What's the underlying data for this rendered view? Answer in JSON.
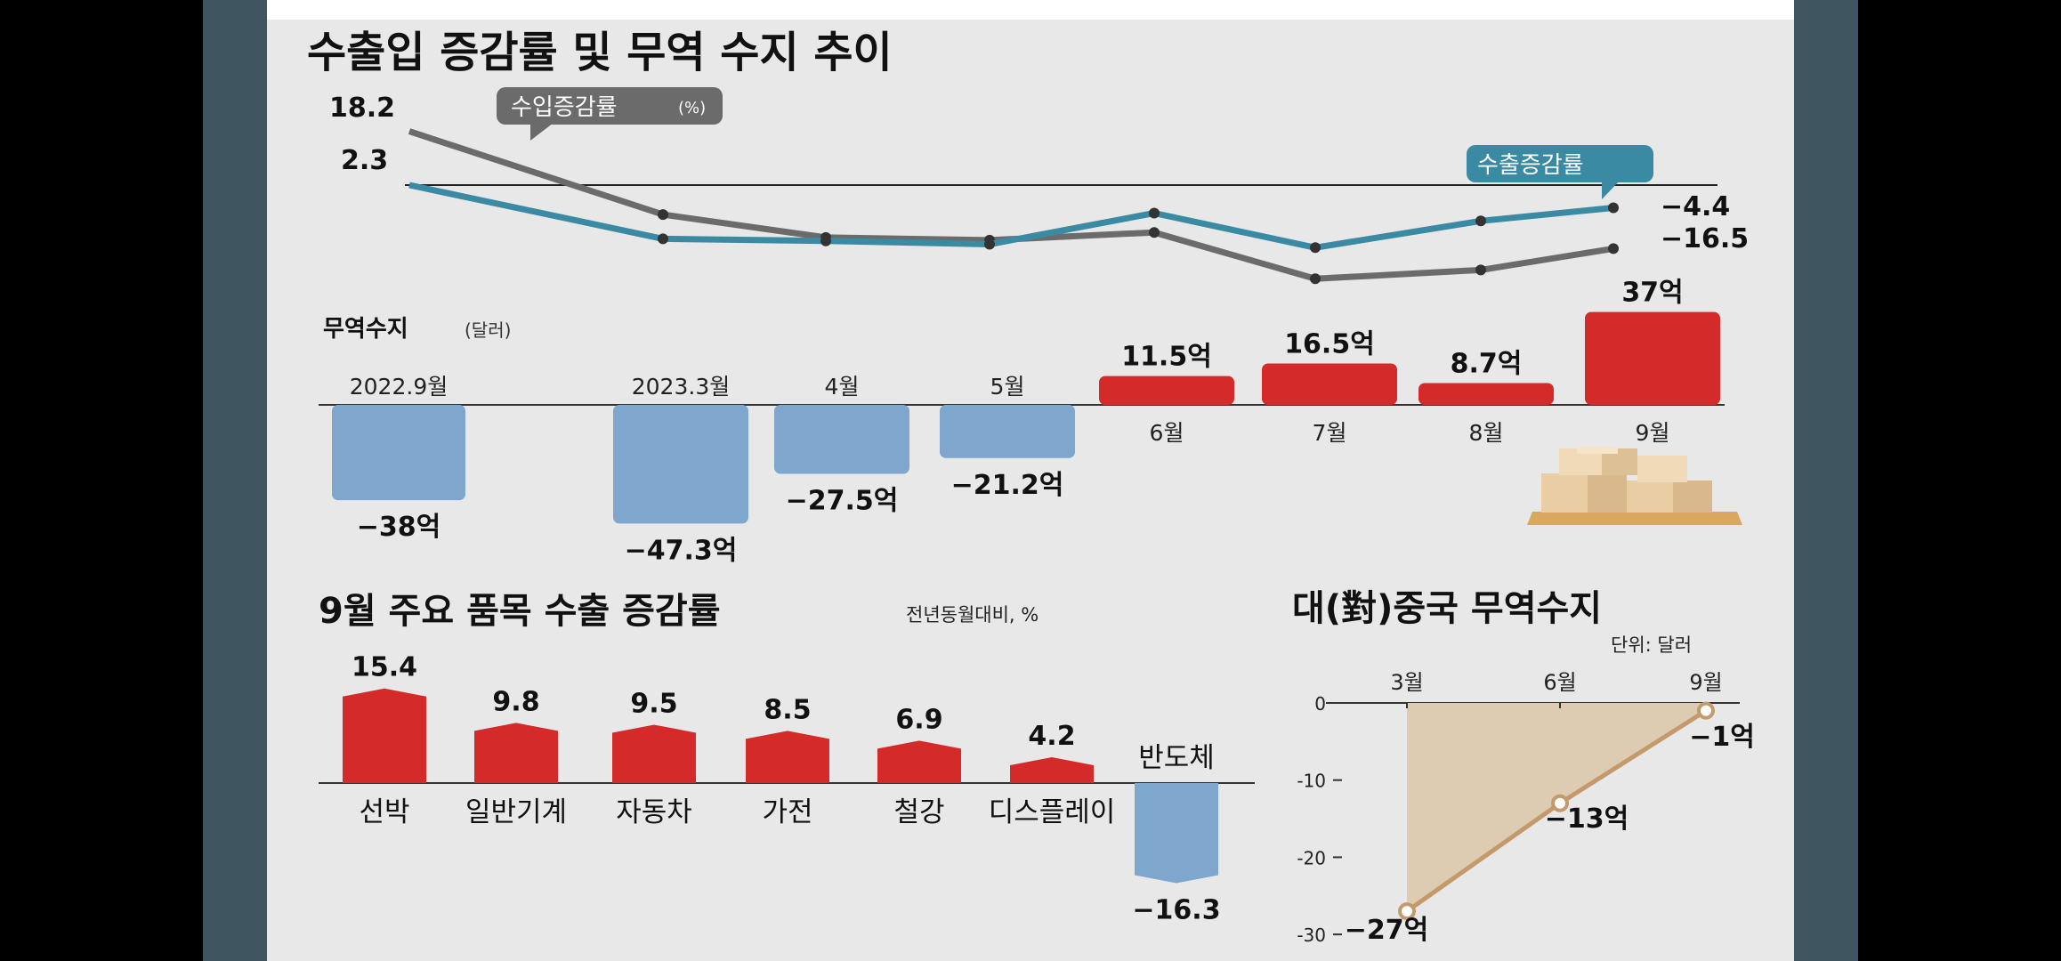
{
  "colors": {
    "export_line": "#3b8aa3",
    "import_line": "#6b6b6b",
    "positive_bar": "#d42a2a",
    "negative_bar": "#7fa6cc",
    "china_line": "#c49a6c",
    "china_fill": "#ddcbb2",
    "frame": "#3f5661"
  },
  "chart_data": [
    {
      "type": "line",
      "title": "수출입 증감률 및 무역 수지 추이",
      "x": [
        "2022.9월",
        "2023.3월",
        "4월",
        "5월",
        "6월",
        "7월",
        "8월",
        "9월"
      ],
      "series": [
        {
          "name": "수입증감률",
          "values": [
            18.2,
            -6.4,
            -13.2,
            -14.0,
            -11.7,
            -25.4,
            -22.8,
            -16.5
          ]
        },
        {
          "name": "수출증감률",
          "values": [
            2.3,
            -13.6,
            -14.2,
            -15.2,
            -6.0,
            -16.2,
            -8.3,
            -4.4
          ]
        }
      ],
      "series_units": "(%)",
      "start_labels": {
        "import": "18.2",
        "export": "2.3"
      },
      "end_labels": {
        "export": "−4.4",
        "import": "−16.5"
      }
    },
    {
      "type": "bar",
      "subtitle": "무역수지",
      "unit": "(달러)",
      "categories": [
        "2022.9월",
        "2023.3월",
        "4월",
        "5월",
        "6월",
        "7월",
        "8월",
        "9월"
      ],
      "values": [
        -38,
        -47.3,
        -27.5,
        -21.2,
        11.5,
        16.5,
        8.7,
        37
      ],
      "data_labels": [
        "−38억",
        "−47.3억",
        "−27.5억",
        "−21.2억",
        "11.5억",
        "16.5억",
        "8.7억",
        "37억"
      ]
    },
    {
      "type": "bar",
      "title": "9월 주요 품목 수출 증감률",
      "unit": "전년동월대비, %",
      "categories": [
        "선박",
        "일반기계",
        "자동차",
        "가전",
        "철강",
        "디스플레이",
        "반도체"
      ],
      "values": [
        15.4,
        9.8,
        9.5,
        8.5,
        6.9,
        4.2,
        -16.3
      ],
      "data_labels": [
        "15.4",
        "9.8",
        "9.5",
        "8.5",
        "6.9",
        "4.2",
        "−16.3"
      ]
    },
    {
      "type": "area",
      "title": "대(對)중국 무역수지",
      "unit": "단위: 달러",
      "x": [
        "3월",
        "6월",
        "9월"
      ],
      "values": [
        -27,
        -13,
        -1
      ],
      "data_labels": [
        "−27억",
        "−13억",
        "−1억"
      ],
      "ylim": [
        -30,
        0
      ],
      "yticks": [
        "0",
        "-10",
        "-20",
        "-30"
      ],
      "grid": false
    }
  ]
}
